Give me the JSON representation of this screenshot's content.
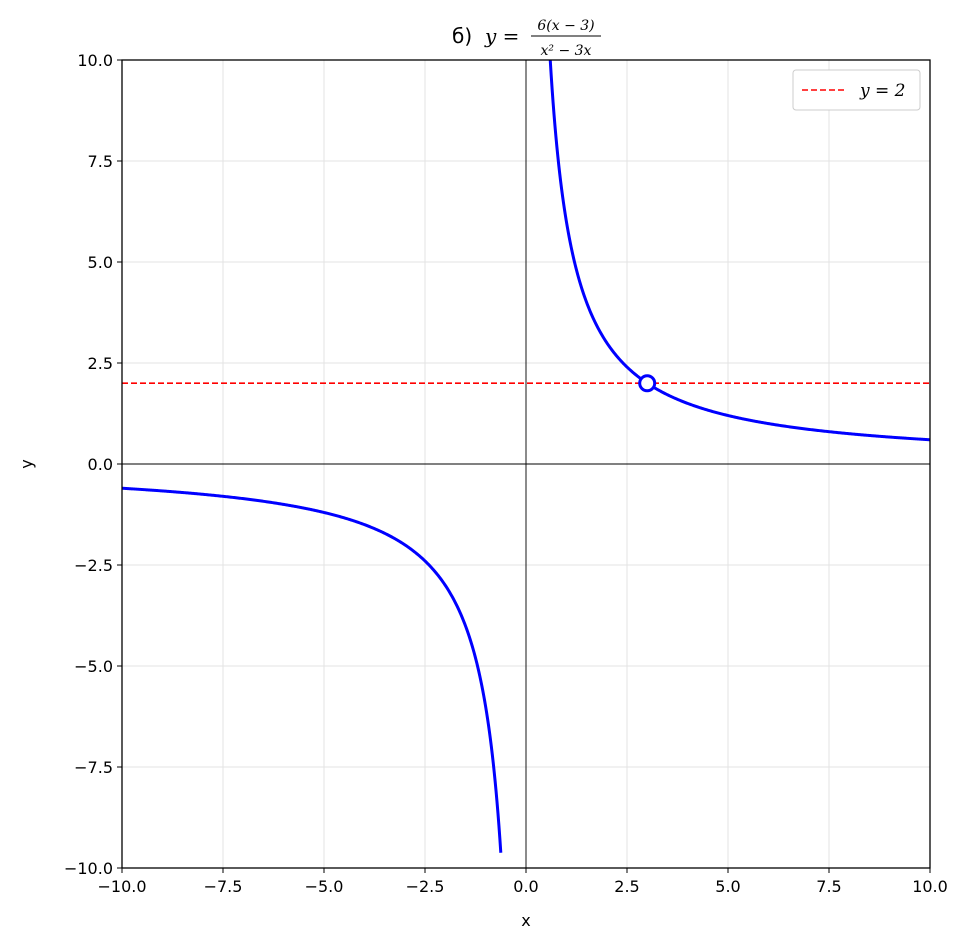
{
  "chart_data": {
    "type": "line",
    "title": {
      "prefix": "б)",
      "lhs": "y =",
      "numerator": "6(x − 3)",
      "denominator": "x² − 3x"
    },
    "xlabel": "x",
    "ylabel": "y",
    "xlim": [
      -10,
      10
    ],
    "ylim": [
      -10,
      10
    ],
    "xticks": [
      -10,
      -7.5,
      -5,
      -2.5,
      0,
      2.5,
      5,
      7.5,
      10
    ],
    "yticks": [
      -10,
      -7.5,
      -5,
      -2.5,
      0,
      2.5,
      5,
      7.5,
      10
    ],
    "xtick_labels": [
      "−10.0",
      "−7.5",
      "−5.0",
      "−2.5",
      "0.0",
      "2.5",
      "5.0",
      "7.5",
      "10.0"
    ],
    "ytick_labels": [
      "−10.0",
      "−7.5",
      "−5.0",
      "−2.5",
      "0.0",
      "2.5",
      "5.0",
      "7.5",
      "10.0"
    ],
    "grid": true,
    "legend_position": "top-right",
    "series": [
      {
        "function": "y = 6/x (x ≠ 0, x ≠ 3)",
        "color": "#0000ff",
        "x": [
          -10,
          -9,
          -8,
          -7,
          -6,
          -5,
          -4,
          -3,
          -2.5,
          -2,
          -1.5,
          -1.2,
          -1,
          -0.9,
          -0.8,
          -0.7,
          -0.6,
          0.6,
          0.7,
          0.8,
          0.9,
          1,
          1.2,
          1.5,
          2,
          2.5,
          3,
          3.5,
          4,
          5,
          6,
          7,
          8,
          9,
          10
        ],
        "y": [
          -0.6,
          -0.667,
          -0.75,
          -0.857,
          -1,
          -1.2,
          -1.5,
          -2,
          -2.4,
          -3,
          -4,
          -5,
          -6,
          -6.667,
          -7.5,
          -8.571,
          -10,
          10,
          8.571,
          7.5,
          6.667,
          6,
          5,
          4,
          3,
          2.4,
          2,
          1.714,
          1.5,
          1.2,
          1,
          0.857,
          0.75,
          0.667,
          0.6
        ]
      },
      {
        "name": "y = 2",
        "style": "dashed",
        "color": "#ff0000",
        "x": [
          -10,
          10
        ],
        "y": [
          2,
          2
        ]
      }
    ],
    "removed_point": {
      "x": 3,
      "y": 2
    },
    "legend": {
      "label": "y = 2"
    }
  }
}
